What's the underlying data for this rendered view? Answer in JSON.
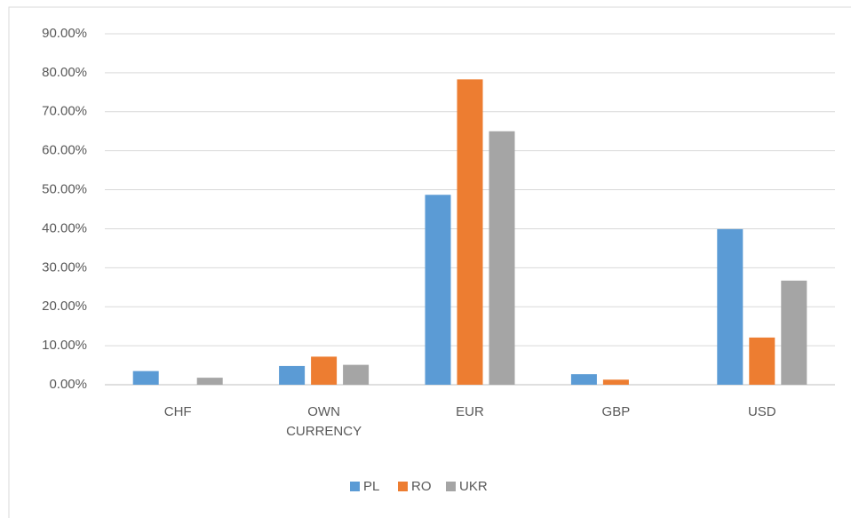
{
  "chart_data": {
    "type": "bar",
    "categories": [
      "CHF",
      "OWN CURRENCY",
      "EUR",
      "GBP",
      "USD"
    ],
    "series": [
      {
        "name": "PL",
        "color": "#5b9bd5",
        "values": [
          3.5,
          4.8,
          48.7,
          2.7,
          39.9
        ]
      },
      {
        "name": "RO",
        "color": "#ed7d31",
        "values": [
          0,
          7.2,
          78.3,
          1.3,
          12.1
        ]
      },
      {
        "name": "UKR",
        "color": "#a5a5a5",
        "values": [
          1.8,
          5.1,
          65,
          0,
          26.7
        ]
      }
    ],
    "ylim": [
      0,
      90
    ],
    "yticks": [
      {
        "value": 0,
        "label": "0.00%"
      },
      {
        "value": 10,
        "label": "10.00%"
      },
      {
        "value": 20,
        "label": "20.00%"
      },
      {
        "value": 30,
        "label": "30.00%"
      },
      {
        "value": 40,
        "label": "40.00%"
      },
      {
        "value": 50,
        "label": "50.00%"
      },
      {
        "value": 60,
        "label": "60.00%"
      },
      {
        "value": 70,
        "label": "70.00%"
      },
      {
        "value": 80,
        "label": "80.00%"
      },
      {
        "value": 90,
        "label": "90.00%"
      }
    ],
    "grid": true,
    "legend": "bottom"
  }
}
